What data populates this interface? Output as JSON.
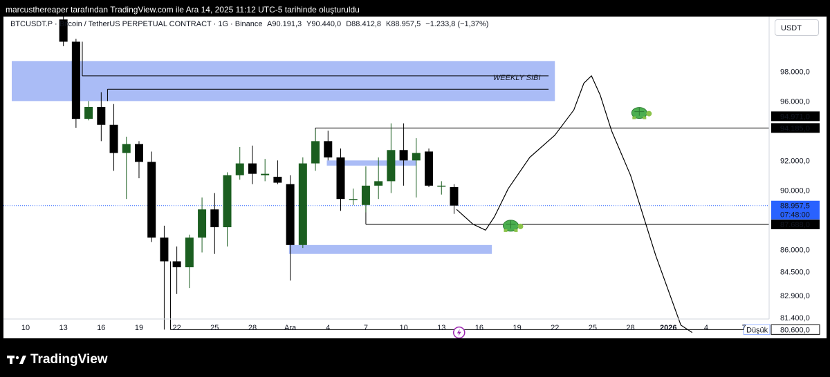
{
  "header": {
    "attribution": "marcusthereaper tarafından TradingView.com ile Ara 14, 2025 11:12 UTC-5 tarihinde oluşturuldu"
  },
  "legend": {
    "symbol": "BTCUSDT.P · Bitcoin / TetherUS PERPETUAL CONTRACT · 1G · Binance",
    "open": "A90.191,3",
    "high": "Y90.440,0",
    "low": "D88.412,8",
    "close": "K88.957,5",
    "change": "−1.233,8 (−1,37%)"
  },
  "currency": "USDT",
  "logo_text": "TradingView",
  "colors": {
    "up": "#1b5e20",
    "down": "#000000",
    "zone": "#a5b8f5",
    "zone_dark": "#1e3a8a",
    "last_price": "#2962ff",
    "marker": "#9c27b0"
  },
  "chart_data": {
    "type": "candlestick",
    "ylim": [
      79500,
      100000
    ],
    "yticks": [
      "98.000,0",
      "96.000,0",
      "94.971,0",
      "94.185,0",
      "92.000,0",
      "90.000,0",
      "88.957,5",
      "07:48:00",
      "87.688,0",
      "86.000,0",
      "84.500,0",
      "82.900,0",
      "81.400,0",
      "80.600,0"
    ],
    "ytick_values": [
      98000,
      96000,
      94971,
      94185,
      92000,
      90000,
      88957.5,
      null,
      87688,
      86000,
      84500,
      82900,
      81400,
      80600
    ],
    "xticks": [
      "10",
      "13",
      "16",
      "19",
      "22",
      "25",
      "28",
      "Ara",
      "4",
      "7",
      "10",
      "13",
      "16",
      "19",
      "22",
      "25",
      "28",
      "2026",
      "4",
      "7"
    ],
    "xtick_days": [
      0,
      3,
      6,
      9,
      12,
      15,
      18,
      21,
      24,
      27,
      30,
      33,
      36,
      39,
      42,
      45,
      48,
      51,
      54,
      57
    ],
    "candles": [
      {
        "d": 3,
        "o": 101500,
        "h": 102500,
        "l": 99700,
        "c": 100000
      },
      {
        "d": 4,
        "o": 100000,
        "h": 100200,
        "l": 94200,
        "c": 94800
      },
      {
        "d": 5,
        "o": 94800,
        "h": 96000,
        "l": 94700,
        "c": 95600
      },
      {
        "d": 6,
        "o": 95600,
        "h": 96600,
        "l": 93300,
        "c": 94400
      },
      {
        "d": 7,
        "o": 94400,
        "h": 95800,
        "l": 91300,
        "c": 92500
      },
      {
        "d": 8,
        "o": 92500,
        "h": 93600,
        "l": 89400,
        "c": 93100
      },
      {
        "d": 9,
        "o": 93100,
        "h": 93300,
        "l": 90800,
        "c": 91900
      },
      {
        "d": 10,
        "o": 91900,
        "h": 92600,
        "l": 86500,
        "c": 86800
      },
      {
        "d": 11,
        "o": 86800,
        "h": 87600,
        "l": 80600,
        "c": 85200
      },
      {
        "d": 12,
        "o": 85200,
        "h": 86200,
        "l": 83000,
        "c": 84800
      },
      {
        "d": 13,
        "o": 84800,
        "h": 87000,
        "l": 83400,
        "c": 86800
      },
      {
        "d": 14,
        "o": 86800,
        "h": 89500,
        "l": 85800,
        "c": 88700
      },
      {
        "d": 15,
        "o": 88700,
        "h": 89800,
        "l": 85700,
        "c": 87500
      },
      {
        "d": 16,
        "o": 87500,
        "h": 91200,
        "l": 86200,
        "c": 91000
      },
      {
        "d": 17,
        "o": 91000,
        "h": 92900,
        "l": 90700,
        "c": 91800
      },
      {
        "d": 18,
        "o": 91800,
        "h": 93000,
        "l": 90400,
        "c": 91100
      },
      {
        "d": 19,
        "o": 91000,
        "h": 92100,
        "l": 90600,
        "c": 91100
      },
      {
        "d": 20,
        "o": 90900,
        "h": 92000,
        "l": 90400,
        "c": 90500
      },
      {
        "d": 21,
        "o": 90400,
        "h": 91000,
        "l": 83900,
        "c": 86300
      },
      {
        "d": 22,
        "o": 86300,
        "h": 92200,
        "l": 86100,
        "c": 91800
      },
      {
        "d": 23,
        "o": 91800,
        "h": 94100,
        "l": 91300,
        "c": 93300
      },
      {
        "d": 24,
        "o": 93300,
        "h": 94000,
        "l": 92000,
        "c": 92200
      },
      {
        "d": 25,
        "o": 92200,
        "h": 92800,
        "l": 88600,
        "c": 89400
      },
      {
        "d": 26,
        "o": 89400,
        "h": 90100,
        "l": 89000,
        "c": 89400
      },
      {
        "d": 27,
        "o": 89000,
        "h": 91600,
        "l": 88500,
        "c": 90300
      },
      {
        "d": 28,
        "o": 90300,
        "h": 92200,
        "l": 89400,
        "c": 90600
      },
      {
        "d": 29,
        "o": 90600,
        "h": 94500,
        "l": 89800,
        "c": 92700
      },
      {
        "d": 30,
        "o": 92700,
        "h": 94500,
        "l": 90300,
        "c": 92000
      },
      {
        "d": 31,
        "o": 92000,
        "h": 93500,
        "l": 89500,
        "c": 92500
      },
      {
        "d": 32,
        "o": 92600,
        "h": 92800,
        "l": 90200,
        "c": 90300
      },
      {
        "d": 33,
        "o": 90300,
        "h": 90600,
        "l": 89700,
        "c": 90300
      },
      {
        "d": 34,
        "o": 90200,
        "h": 90400,
        "l": 88400,
        "c": 88957.5
      }
    ],
    "zones": [
      {
        "label": "WEEKLY SIBI",
        "d0": 0,
        "d1": 42,
        "y0": 96000,
        "y1": 98700
      },
      {
        "label": "",
        "d0": 25,
        "d1": 31,
        "y0": 91650,
        "y1": 92000
      },
      {
        "label": "",
        "d0": 22,
        "d1": 37,
        "y0": 85700,
        "y1": 86300
      }
    ],
    "hlines": [
      {
        "d0": 4.5,
        "d1": 41.5,
        "y": 97700
      },
      {
        "d0": 6.5,
        "d1": 41.5,
        "y": 96800
      },
      {
        "d0": 23,
        "d1": 60,
        "y": 94185
      },
      {
        "d0": 27,
        "d1": 60,
        "y": 87688
      },
      {
        "d0": 11.5,
        "d1": 60,
        "y": 80600
      }
    ],
    "vlines": [
      {
        "d": 4.5,
        "y0": 97700,
        "y1": 100000
      },
      {
        "d": 6.5,
        "y0": 96000,
        "y1": 96800
      },
      {
        "d": 23,
        "y0": 93300,
        "y1": 94185
      },
      {
        "d": 27,
        "y0": 87688,
        "y1": 89300
      },
      {
        "d": 11.5,
        "y0": 80600,
        "y1": 85200
      }
    ],
    "path": [
      [
        34.2,
        88700
      ],
      [
        35.5,
        87700
      ],
      [
        36.5,
        87300
      ],
      [
        37.2,
        88200
      ],
      [
        38.3,
        90100
      ],
      [
        40,
        92200
      ],
      [
        42,
        93700
      ],
      [
        43.5,
        95400
      ],
      [
        44.3,
        97200
      ],
      [
        44.9,
        97700
      ],
      [
        45.6,
        96400
      ],
      [
        46.5,
        94000
      ],
      [
        48,
        91000
      ],
      [
        50,
        85600
      ],
      [
        52,
        80900
      ],
      [
        52.9,
        80400
      ]
    ],
    "labels": [
      "WEEKLY SIBI",
      "Düşük"
    ],
    "markers": [
      "turtle-icon",
      "turtle-icon",
      "lightning-icon"
    ]
  }
}
